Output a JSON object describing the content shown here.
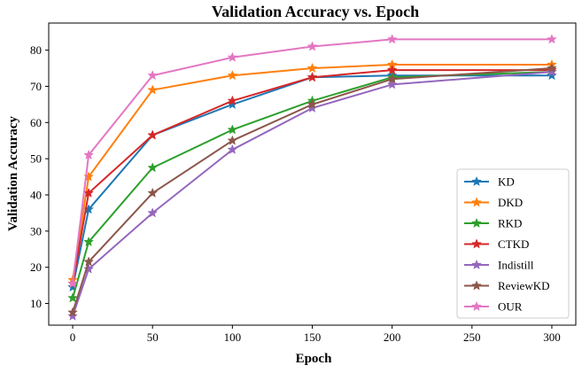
{
  "chart_data": {
    "type": "line",
    "title": "Validation Accuracy vs. Epoch",
    "xlabel": "Epoch",
    "ylabel": "Validation Accuracy",
    "x": [
      0,
      10,
      50,
      100,
      150,
      200,
      300
    ],
    "xlim": [
      -15,
      315
    ],
    "ylim": [
      4,
      87.5
    ],
    "xticks": [
      0,
      50,
      100,
      150,
      200,
      250,
      300
    ],
    "yticks": [
      10,
      20,
      30,
      40,
      50,
      60,
      70,
      80
    ],
    "grid": false,
    "legend_position": "bottom-right",
    "marker": "star",
    "series": [
      {
        "name": "KD",
        "color": "#1f77b4",
        "values": [
          14.5,
          36,
          56.5,
          65,
          72.5,
          73,
          73
        ]
      },
      {
        "name": "DKD",
        "color": "#ff7f0e",
        "values": [
          16.5,
          45,
          69,
          73,
          75,
          76,
          76
        ]
      },
      {
        "name": "RKD",
        "color": "#2ca02c",
        "values": [
          11.5,
          27,
          47.5,
          58,
          66,
          72.5,
          74
        ]
      },
      {
        "name": "CTKD",
        "color": "#d62728",
        "values": [
          15.5,
          40.5,
          56.5,
          66,
          72.5,
          74.5,
          74.5
        ]
      },
      {
        "name": "Indistill",
        "color": "#9467bd",
        "values": [
          6.5,
          19.5,
          35,
          52.5,
          64,
          70.5,
          74
        ]
      },
      {
        "name": "ReviewKD",
        "color": "#8c564b",
        "values": [
          7.5,
          21.5,
          40.5,
          55,
          65,
          72,
          75
        ]
      },
      {
        "name": "OUR",
        "color": "#e377c2",
        "values": [
          15.5,
          51,
          73,
          78,
          81,
          83,
          83
        ]
      }
    ]
  }
}
